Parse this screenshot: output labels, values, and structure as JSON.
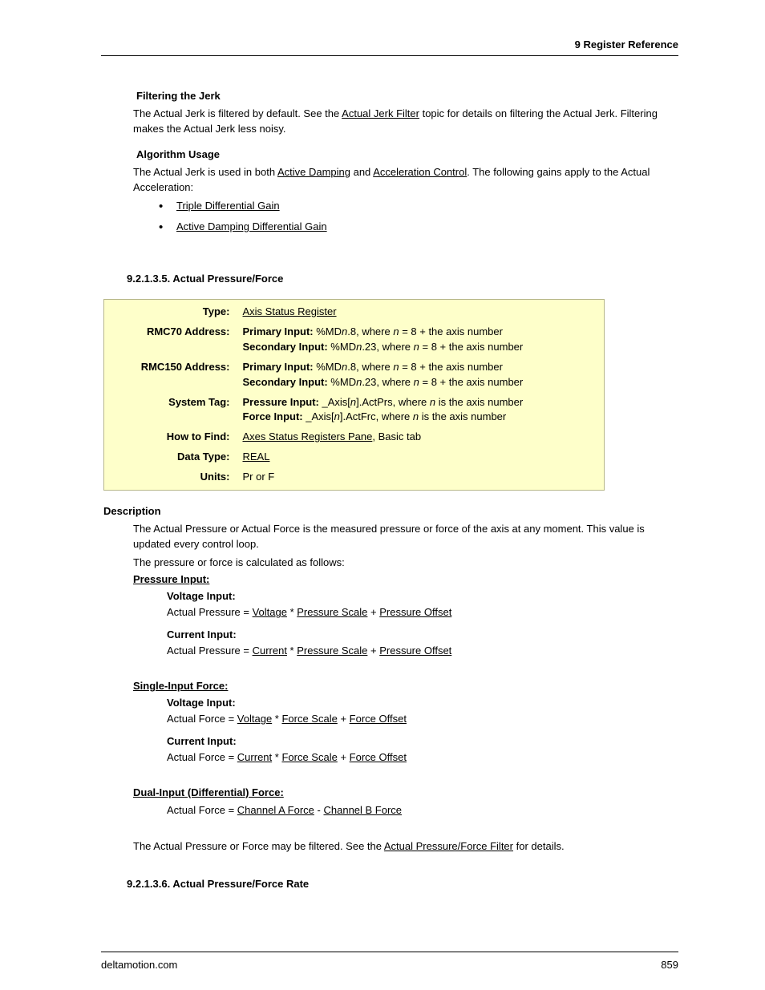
{
  "header": {
    "chapter": "9  Register Reference"
  },
  "filtering": {
    "heading": "Filtering the Jerk",
    "text_pre": "The Actual Jerk is filtered by default. See the ",
    "link": "Actual Jerk Filter",
    "text_post": " topic for details on filtering the Actual Jerk. Filtering makes the Actual Jerk less noisy."
  },
  "algorithm": {
    "heading": "Algorithm Usage",
    "text_pre": "The Actual Jerk is used in both ",
    "link1": "Active Damping",
    "mid": " and ",
    "link2": "Acceleration Control",
    "text_post": ". The following gains apply to the Actual Acceleration:",
    "list": [
      "Triple Differential Gain",
      "Active Damping Differential Gain"
    ]
  },
  "section5": {
    "number": "9.2.1.3.5. Actual Pressure/Force",
    "table": {
      "type_label": "Type:",
      "type_value": "Axis Status Register",
      "rmc70_label": "RMC70 Address:",
      "rmc70_primary_a": "Primary Input:",
      "rmc70_primary_b": " %MD",
      "rmc70_primary_c": "n",
      "rmc70_primary_d": ".8, where ",
      "rmc70_primary_e": "n",
      "rmc70_primary_f": " = 8 + the axis number",
      "rmc70_secondary_a": "Secondary Input:",
      "rmc70_secondary_b": " %MD",
      "rmc70_secondary_c": "n",
      "rmc70_secondary_d": ".23, where ",
      "rmc70_secondary_e": "n",
      "rmc70_secondary_f": " = 8 + the axis number",
      "rmc150_label": "RMC150 Address:",
      "rmc150_primary_a": "Primary Input:",
      "rmc150_primary_b": " %MD",
      "rmc150_primary_c": "n",
      "rmc150_primary_d": ".8, where ",
      "rmc150_primary_e": "n",
      "rmc150_primary_f": " = 8 + the axis number",
      "rmc150_secondary_a": "Secondary Input:",
      "rmc150_secondary_b": " %MD",
      "rmc150_secondary_c": "n",
      "rmc150_secondary_d": ".23, where ",
      "rmc150_secondary_e": "n",
      "rmc150_secondary_f": " = 8 + the axis number",
      "systag_label": "System Tag:",
      "systag_pressure_a": "Pressure Input:",
      "systag_pressure_b": " _Axis[",
      "systag_pressure_c": "n",
      "systag_pressure_d": "].ActPrs, where ",
      "systag_pressure_e": "n",
      "systag_pressure_f": " is the axis number",
      "systag_force_a": "Force Input:",
      "systag_force_b": " _Axis[",
      "systag_force_c": "n",
      "systag_force_d": "].ActFrc, where ",
      "systag_force_e": "n",
      "systag_force_f": " is the axis number",
      "howto_label": "How to Find:",
      "howto_link": "Axes Status Registers Pane",
      "howto_post": ", Basic tab",
      "datatype_label": "Data Type:",
      "datatype_value": "REAL",
      "units_label": "Units:",
      "units_value": "Pr or F"
    },
    "description": {
      "heading": "Description",
      "p1": "The Actual Pressure or Actual Force is the measured pressure or force of the axis at any moment. This value is updated every control loop.",
      "p2": "The pressure or force is calculated as follows:",
      "pressure_head": "Pressure Input:",
      "volt_head": "Voltage Input:",
      "p_volt_pre": "Actual Pressure = ",
      "p_volt_l1": "Voltage",
      "p_volt_mid1": " * ",
      "p_volt_l2": "Pressure Scale",
      "p_volt_mid2": " + ",
      "p_volt_l3": "Pressure Offset",
      "curr_head": "Current Input:",
      "p_curr_pre": "Actual Pressure = ",
      "p_curr_l1": "Current",
      "p_curr_mid1": " * ",
      "p_curr_l2": "Pressure Scale",
      "p_curr_mid2": " + ",
      "p_curr_l3": "Pressure Offset",
      "single_head": "Single-Input Force:",
      "f_volt_pre": "Actual Force = ",
      "f_volt_l1": "Voltage",
      "f_volt_mid1": " * ",
      "f_volt_l2": "Force Scale",
      "f_volt_mid2": " + ",
      "f_volt_l3": "Force Offset",
      "f_curr_pre": "Actual Force =  ",
      "f_curr_l1": "Current",
      "f_curr_mid1": " * ",
      "f_curr_l2": "Force Scale",
      "f_curr_mid2": " + ",
      "f_curr_l3": "Force Offset",
      "dual_head": "Dual-Input (Differential) Force:",
      "d_pre": "Actual Force = ",
      "d_l1": "Channel A Force",
      "d_mid": " - ",
      "d_l2": "Channel B Force",
      "filter_pre": "The Actual Pressure or Force may be filtered. See the ",
      "filter_link": "Actual Pressure/Force Filter",
      "filter_post": " for details."
    }
  },
  "section6": {
    "number": "9.2.1.3.6. Actual Pressure/Force Rate"
  },
  "footer": {
    "site": "deltamotion.com",
    "page": "859"
  },
  "colors": {
    "table_bg": "#feffca",
    "table_border": "#b8b88a"
  },
  "typography": {
    "body_fontsize": 13,
    "heading_fontweight": "bold"
  }
}
